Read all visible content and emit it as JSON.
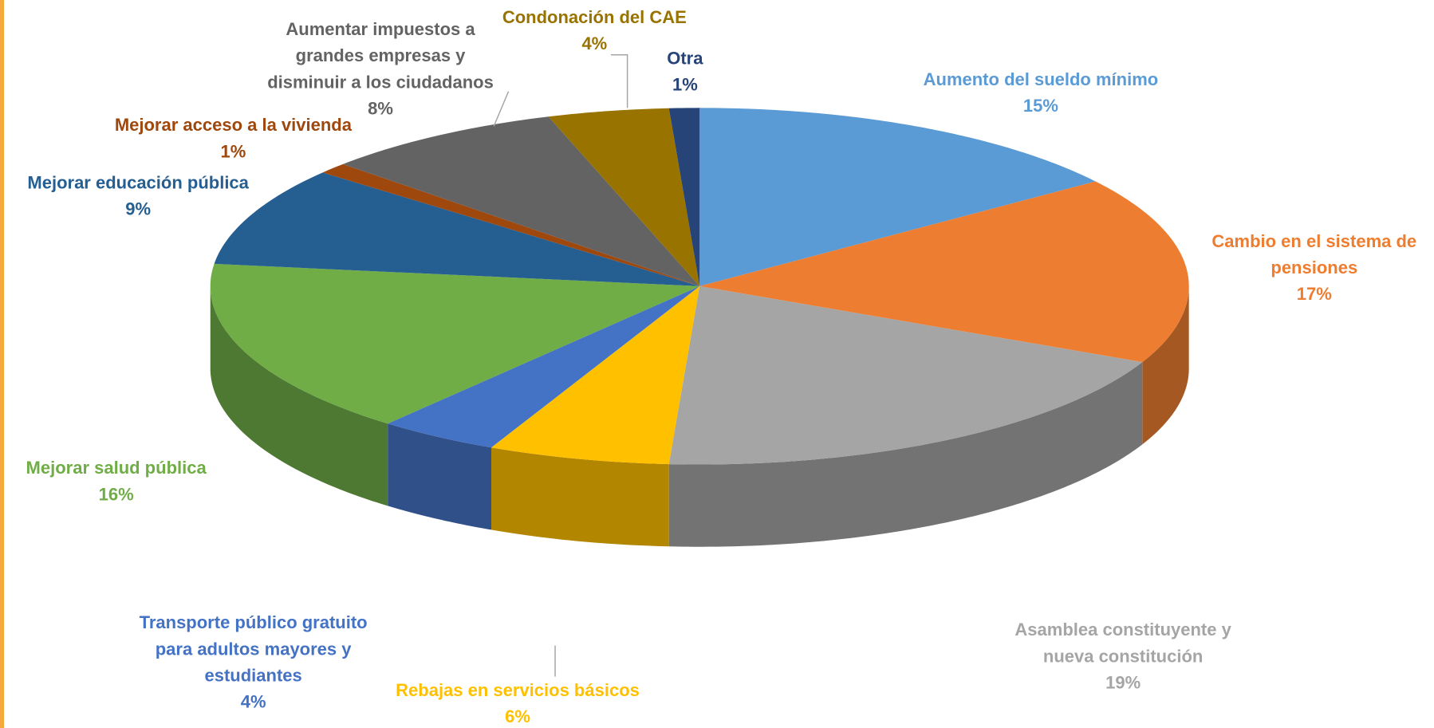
{
  "chart_data": {
    "type": "pie3d",
    "categories": [
      "Aumento del sueldo mínimo",
      "Cambio en el sistema de\npensiones",
      "Asamblea constituyente y\nnueva constitución",
      "Rebajas en servicios básicos",
      "Transporte público gratuito\npara adultos mayores y\nestudiantes",
      "Mejorar salud pública",
      "Mejorar educación pública",
      "Mejorar acceso a la vivienda",
      "Aumentar impuestos a\ngrandes empresas y\ndisminuir a los ciudadanos",
      "Condonación del CAE",
      "Otra"
    ],
    "values": [
      15,
      17,
      19,
      6,
      4,
      16,
      9,
      1,
      8,
      4,
      1
    ],
    "value_labels": [
      "15%",
      "17%",
      "19%",
      "6%",
      "4%",
      "16%",
      "9%",
      "1%",
      "8%",
      "4%",
      "1%"
    ],
    "colors": [
      "#5b9bd5",
      "#ed7d31",
      "#a5a5a5",
      "#ffc000",
      "#4472c4",
      "#70ad47",
      "#255e91",
      "#9e480e",
      "#636363",
      "#997300",
      "#264478"
    ]
  }
}
